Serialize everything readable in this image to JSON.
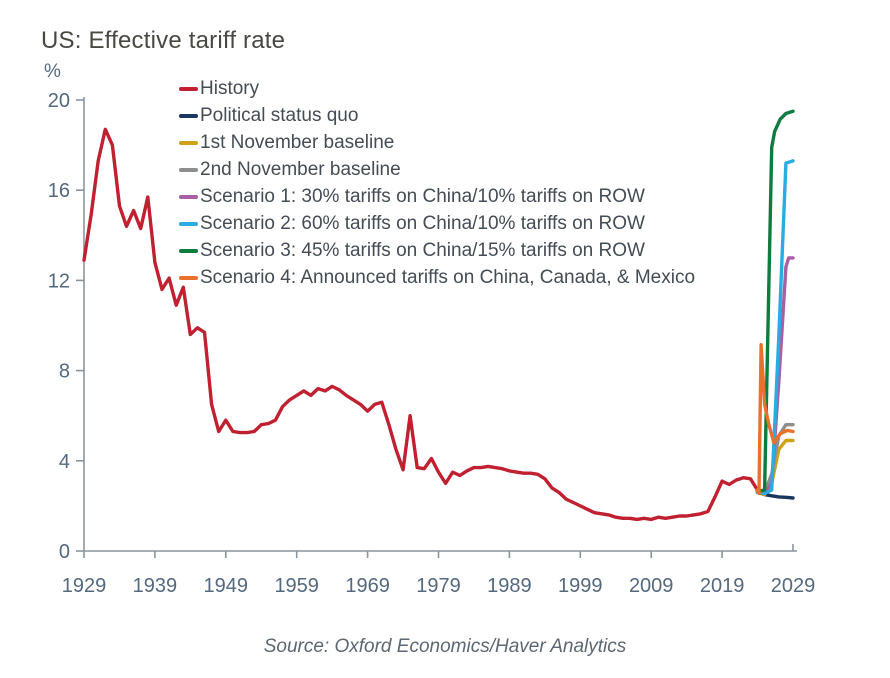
{
  "chart_data": {
    "type": "line",
    "title": "US: Effective tariff rate",
    "unit_label": "%",
    "source": "Source: Oxford Economics/Haver Analytics",
    "x_range": [
      1929,
      2029
    ],
    "y_range": [
      0,
      20
    ],
    "x_ticks": [
      1929,
      1939,
      1949,
      1959,
      1969,
      1979,
      1989,
      1999,
      2009,
      2019,
      2029
    ],
    "y_ticks": [
      0,
      4,
      8,
      12,
      16,
      20
    ],
    "grid": false,
    "legend_position": "top-left-inside",
    "series": [
      {
        "name": "History",
        "color": "#c02030",
        "x_start": 1929,
        "x_step": 1,
        "values": [
          12.9,
          14.9,
          17.3,
          18.7,
          18.0,
          15.3,
          14.4,
          15.1,
          14.3,
          15.7,
          12.8,
          11.6,
          12.1,
          10.9,
          11.7,
          9.6,
          9.9,
          9.7,
          6.5,
          5.3,
          5.8,
          5.3,
          5.25,
          5.25,
          5.3,
          5.6,
          5.65,
          5.8,
          6.4,
          6.7,
          6.9,
          7.1,
          6.9,
          7.2,
          7.1,
          7.3,
          7.15,
          6.9,
          6.7,
          6.5,
          6.2,
          6.5,
          6.6,
          5.6,
          4.5,
          3.6,
          6.0,
          3.7,
          3.65,
          4.1,
          3.5,
          3.0,
          3.5,
          3.35,
          3.55,
          3.7,
          3.7,
          3.75,
          3.7,
          3.65,
          3.55,
          3.5,
          3.45,
          3.45,
          3.4,
          3.2,
          2.8,
          2.6,
          2.3,
          2.15,
          2.0,
          1.85,
          1.7,
          1.65,
          1.6,
          1.5,
          1.45,
          1.45,
          1.4,
          1.45,
          1.4,
          1.5,
          1.45,
          1.5,
          1.55,
          1.55,
          1.6,
          1.65,
          1.75,
          2.4,
          3.1,
          2.95,
          3.15,
          3.25,
          3.2,
          2.7
        ]
      },
      {
        "name": "Political status quo",
        "color": "#17375e",
        "points": [
          [
            2024,
            2.6
          ],
          [
            2025,
            2.5
          ],
          [
            2026,
            2.45
          ],
          [
            2027,
            2.4
          ],
          [
            2028,
            2.38
          ],
          [
            2029,
            2.35
          ]
        ]
      },
      {
        "name": "1st November baseline",
        "color": "#d0a216",
        "points": [
          [
            2024,
            2.6
          ],
          [
            2025,
            2.5
          ],
          [
            2026,
            3.0
          ],
          [
            2027,
            4.5
          ],
          [
            2028,
            4.9
          ],
          [
            2029,
            4.9
          ]
        ]
      },
      {
        "name": "2nd November baseline",
        "color": "#8e8e8e",
        "points": [
          [
            2024,
            2.6
          ],
          [
            2025,
            2.6
          ],
          [
            2026,
            3.4
          ],
          [
            2027,
            5.1
          ],
          [
            2028,
            5.6
          ],
          [
            2029,
            5.6
          ]
        ]
      },
      {
        "name": "Scenario 1: 30% tariffs on China/10% tariffs on ROW",
        "color": "#a85fa4",
        "points": [
          [
            2024,
            2.6
          ],
          [
            2025,
            2.6
          ],
          [
            2026,
            3.0
          ],
          [
            2027,
            7.5
          ],
          [
            2028,
            12.6
          ],
          [
            2028.4,
            13.0
          ],
          [
            2029,
            13.0
          ]
        ]
      },
      {
        "name": "Scenario 2: 60% tariffs on China/10% tariffs on ROW",
        "color": "#2aace3",
        "points": [
          [
            2024,
            2.6
          ],
          [
            2025,
            2.55
          ],
          [
            2026,
            2.7
          ],
          [
            2027,
            9.5
          ],
          [
            2028,
            17.2
          ],
          [
            2029,
            17.3
          ]
        ]
      },
      {
        "name": "Scenario 3: 45% tariffs on China/15% tariffs on ROW",
        "color": "#0e7c3e",
        "points": [
          [
            2024,
            2.65
          ],
          [
            2025,
            2.7
          ],
          [
            2026,
            17.9
          ],
          [
            2026.4,
            18.6
          ],
          [
            2027.2,
            19.15
          ],
          [
            2028,
            19.4
          ],
          [
            2029,
            19.5
          ]
        ]
      },
      {
        "name": "Scenario 4: Announced tariffs on China, Canada, & Mexico",
        "color": "#e8712e",
        "points": [
          [
            2023.9,
            2.7
          ],
          [
            2024.2,
            2.55
          ],
          [
            2024.5,
            9.15
          ],
          [
            2025,
            6.5
          ],
          [
            2025.6,
            5.6
          ],
          [
            2026.3,
            4.8
          ],
          [
            2027.2,
            5.2
          ],
          [
            2028.2,
            5.35
          ],
          [
            2029,
            5.3
          ]
        ]
      }
    ]
  }
}
